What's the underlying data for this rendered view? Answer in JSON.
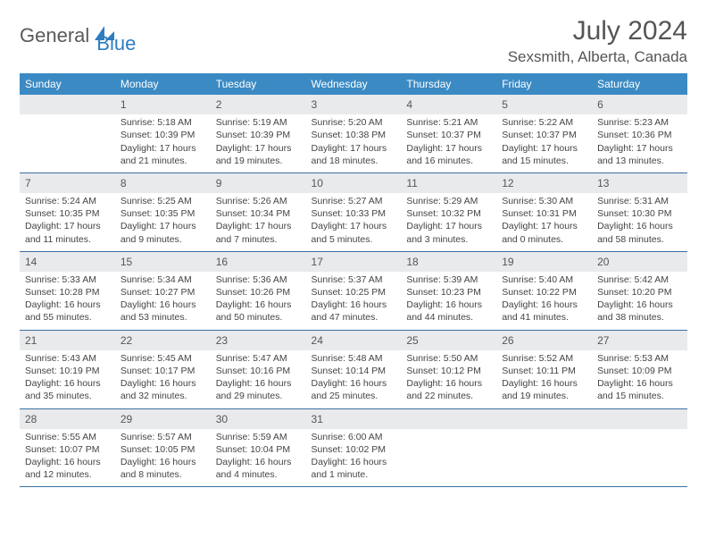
{
  "logo": {
    "part1": "General",
    "part2": "Blue"
  },
  "title": "July 2024",
  "location": "Sexsmith, Alberta, Canada",
  "header_bg": "#3b8ac4",
  "row_border": "#3b6fa0",
  "daynum_bg": "#e9eaec",
  "dayHeaders": [
    "Sunday",
    "Monday",
    "Tuesday",
    "Wednesday",
    "Thursday",
    "Friday",
    "Saturday"
  ],
  "weeks": [
    [
      {
        "n": "",
        "lines": []
      },
      {
        "n": "1",
        "lines": [
          "Sunrise: 5:18 AM",
          "Sunset: 10:39 PM",
          "Daylight: 17 hours",
          "and 21 minutes."
        ]
      },
      {
        "n": "2",
        "lines": [
          "Sunrise: 5:19 AM",
          "Sunset: 10:39 PM",
          "Daylight: 17 hours",
          "and 19 minutes."
        ]
      },
      {
        "n": "3",
        "lines": [
          "Sunrise: 5:20 AM",
          "Sunset: 10:38 PM",
          "Daylight: 17 hours",
          "and 18 minutes."
        ]
      },
      {
        "n": "4",
        "lines": [
          "Sunrise: 5:21 AM",
          "Sunset: 10:37 PM",
          "Daylight: 17 hours",
          "and 16 minutes."
        ]
      },
      {
        "n": "5",
        "lines": [
          "Sunrise: 5:22 AM",
          "Sunset: 10:37 PM",
          "Daylight: 17 hours",
          "and 15 minutes."
        ]
      },
      {
        "n": "6",
        "lines": [
          "Sunrise: 5:23 AM",
          "Sunset: 10:36 PM",
          "Daylight: 17 hours",
          "and 13 minutes."
        ]
      }
    ],
    [
      {
        "n": "7",
        "lines": [
          "Sunrise: 5:24 AM",
          "Sunset: 10:35 PM",
          "Daylight: 17 hours",
          "and 11 minutes."
        ]
      },
      {
        "n": "8",
        "lines": [
          "Sunrise: 5:25 AM",
          "Sunset: 10:35 PM",
          "Daylight: 17 hours",
          "and 9 minutes."
        ]
      },
      {
        "n": "9",
        "lines": [
          "Sunrise: 5:26 AM",
          "Sunset: 10:34 PM",
          "Daylight: 17 hours",
          "and 7 minutes."
        ]
      },
      {
        "n": "10",
        "lines": [
          "Sunrise: 5:27 AM",
          "Sunset: 10:33 PM",
          "Daylight: 17 hours",
          "and 5 minutes."
        ]
      },
      {
        "n": "11",
        "lines": [
          "Sunrise: 5:29 AM",
          "Sunset: 10:32 PM",
          "Daylight: 17 hours",
          "and 3 minutes."
        ]
      },
      {
        "n": "12",
        "lines": [
          "Sunrise: 5:30 AM",
          "Sunset: 10:31 PM",
          "Daylight: 17 hours",
          "and 0 minutes."
        ]
      },
      {
        "n": "13",
        "lines": [
          "Sunrise: 5:31 AM",
          "Sunset: 10:30 PM",
          "Daylight: 16 hours",
          "and 58 minutes."
        ]
      }
    ],
    [
      {
        "n": "14",
        "lines": [
          "Sunrise: 5:33 AM",
          "Sunset: 10:28 PM",
          "Daylight: 16 hours",
          "and 55 minutes."
        ]
      },
      {
        "n": "15",
        "lines": [
          "Sunrise: 5:34 AM",
          "Sunset: 10:27 PM",
          "Daylight: 16 hours",
          "and 53 minutes."
        ]
      },
      {
        "n": "16",
        "lines": [
          "Sunrise: 5:36 AM",
          "Sunset: 10:26 PM",
          "Daylight: 16 hours",
          "and 50 minutes."
        ]
      },
      {
        "n": "17",
        "lines": [
          "Sunrise: 5:37 AM",
          "Sunset: 10:25 PM",
          "Daylight: 16 hours",
          "and 47 minutes."
        ]
      },
      {
        "n": "18",
        "lines": [
          "Sunrise: 5:39 AM",
          "Sunset: 10:23 PM",
          "Daylight: 16 hours",
          "and 44 minutes."
        ]
      },
      {
        "n": "19",
        "lines": [
          "Sunrise: 5:40 AM",
          "Sunset: 10:22 PM",
          "Daylight: 16 hours",
          "and 41 minutes."
        ]
      },
      {
        "n": "20",
        "lines": [
          "Sunrise: 5:42 AM",
          "Sunset: 10:20 PM",
          "Daylight: 16 hours",
          "and 38 minutes."
        ]
      }
    ],
    [
      {
        "n": "21",
        "lines": [
          "Sunrise: 5:43 AM",
          "Sunset: 10:19 PM",
          "Daylight: 16 hours",
          "and 35 minutes."
        ]
      },
      {
        "n": "22",
        "lines": [
          "Sunrise: 5:45 AM",
          "Sunset: 10:17 PM",
          "Daylight: 16 hours",
          "and 32 minutes."
        ]
      },
      {
        "n": "23",
        "lines": [
          "Sunrise: 5:47 AM",
          "Sunset: 10:16 PM",
          "Daylight: 16 hours",
          "and 29 minutes."
        ]
      },
      {
        "n": "24",
        "lines": [
          "Sunrise: 5:48 AM",
          "Sunset: 10:14 PM",
          "Daylight: 16 hours",
          "and 25 minutes."
        ]
      },
      {
        "n": "25",
        "lines": [
          "Sunrise: 5:50 AM",
          "Sunset: 10:12 PM",
          "Daylight: 16 hours",
          "and 22 minutes."
        ]
      },
      {
        "n": "26",
        "lines": [
          "Sunrise: 5:52 AM",
          "Sunset: 10:11 PM",
          "Daylight: 16 hours",
          "and 19 minutes."
        ]
      },
      {
        "n": "27",
        "lines": [
          "Sunrise: 5:53 AM",
          "Sunset: 10:09 PM",
          "Daylight: 16 hours",
          "and 15 minutes."
        ]
      }
    ],
    [
      {
        "n": "28",
        "lines": [
          "Sunrise: 5:55 AM",
          "Sunset: 10:07 PM",
          "Daylight: 16 hours",
          "and 12 minutes."
        ]
      },
      {
        "n": "29",
        "lines": [
          "Sunrise: 5:57 AM",
          "Sunset: 10:05 PM",
          "Daylight: 16 hours",
          "and 8 minutes."
        ]
      },
      {
        "n": "30",
        "lines": [
          "Sunrise: 5:59 AM",
          "Sunset: 10:04 PM",
          "Daylight: 16 hours",
          "and 4 minutes."
        ]
      },
      {
        "n": "31",
        "lines": [
          "Sunrise: 6:00 AM",
          "Sunset: 10:02 PM",
          "Daylight: 16 hours",
          "and 1 minute."
        ]
      },
      {
        "n": "",
        "lines": []
      },
      {
        "n": "",
        "lines": []
      },
      {
        "n": "",
        "lines": []
      }
    ]
  ]
}
